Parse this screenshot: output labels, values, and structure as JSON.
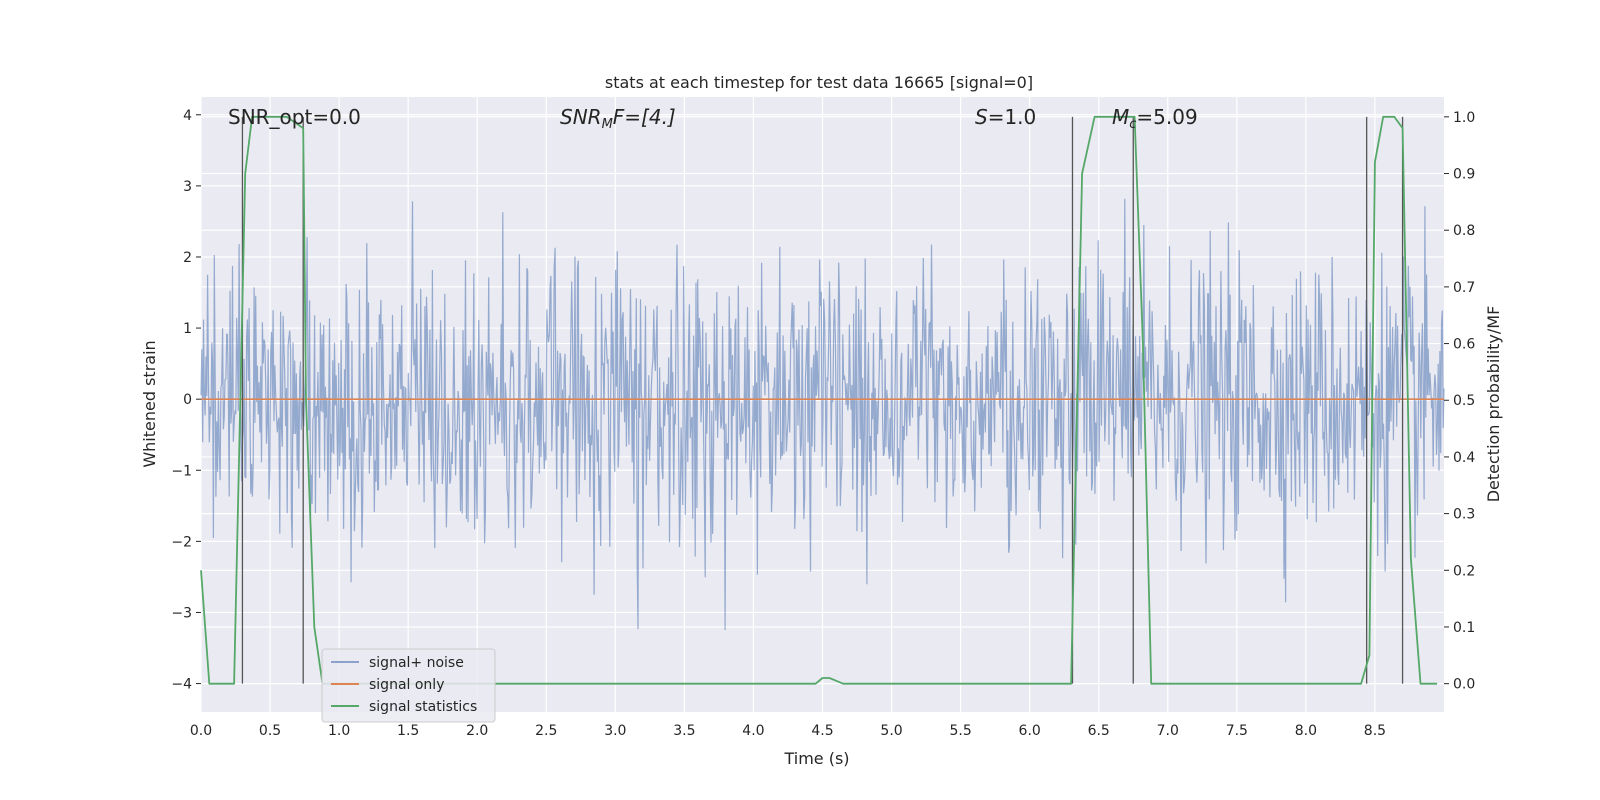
{
  "chart_data": {
    "type": "line",
    "title": "stats at each timestep for test data 16665 [signal=0]",
    "xlabel": "Time (s)",
    "ylabel_left": "Whitened strain",
    "ylabel_right": "Detection probability/MF",
    "xlim": [
      0.0,
      9.0
    ],
    "ylim_left": [
      -4.4,
      4.25
    ],
    "ylim_right": [
      -0.05,
      1.035
    ],
    "x_ticks": [
      "0.0",
      "0.5",
      "1.0",
      "1.5",
      "2.0",
      "2.5",
      "3.0",
      "3.5",
      "4.0",
      "4.5",
      "5.0",
      "5.5",
      "6.0",
      "6.5",
      "7.0",
      "7.5",
      "8.0",
      "8.5"
    ],
    "y_left_ticks": [
      "4",
      "3",
      "2",
      "1",
      "0",
      "−1",
      "−2",
      "−3",
      "−4"
    ],
    "y_right_ticks": [
      "1.0",
      "0.9",
      "0.8",
      "0.7",
      "0.6",
      "0.5",
      "0.4",
      "0.3",
      "0.2",
      "0.1",
      "0.0"
    ],
    "grid": true,
    "legend_position": "lower-left",
    "annotations": {
      "snr_opt": "SNR_opt=0.0",
      "snr_mf_base": "SNR",
      "snr_mf_sub": "M",
      "snr_mf_rest": "F=[4.]",
      "s_var": "S",
      "s_val": "=1.0",
      "mc_var": "M",
      "mc_sub": "c",
      "mc_val": "=5.09"
    },
    "series": [
      {
        "name": "signal+ noise",
        "color": "#4c72b0",
        "opacity": 0.55,
        "description": "whitened strain noise, roughly Gaussian with std ~1, peaks up to ~3.9 and down to ~-4"
      },
      {
        "name": "signal only",
        "color": "#dd8452",
        "y_constant": 0.0
      },
      {
        "name": "signal statistics",
        "color": "#55a868",
        "axis": "right",
        "x": [
          0.0,
          0.06,
          0.24,
          0.28,
          0.32,
          0.37,
          0.5,
          0.62,
          0.74,
          0.76,
          0.82,
          0.88,
          0.9,
          4.45,
          4.5,
          4.55,
          4.6,
          4.65,
          6.2,
          6.3,
          6.38,
          6.47,
          6.6,
          6.72,
          6.76,
          6.82,
          6.88,
          8.4,
          8.46,
          8.5,
          8.56,
          8.64,
          8.7,
          8.76,
          8.83,
          8.95
        ],
        "y": [
          0.2,
          0.0,
          0.0,
          0.45,
          0.9,
          1.0,
          1.0,
          1.0,
          0.98,
          0.5,
          0.1,
          0.0,
          0.0,
          0.0,
          0.01,
          0.01,
          0.005,
          0.0,
          0.0,
          0.0,
          0.9,
          1.0,
          1.0,
          1.0,
          1.0,
          0.6,
          0.0,
          0.0,
          0.05,
          0.92,
          1.0,
          1.0,
          0.98,
          0.22,
          0.0,
          0.0
        ]
      }
    ],
    "vlines_x": [
      0.3,
      0.74,
      6.31,
      6.75,
      8.44,
      8.7
    ]
  }
}
